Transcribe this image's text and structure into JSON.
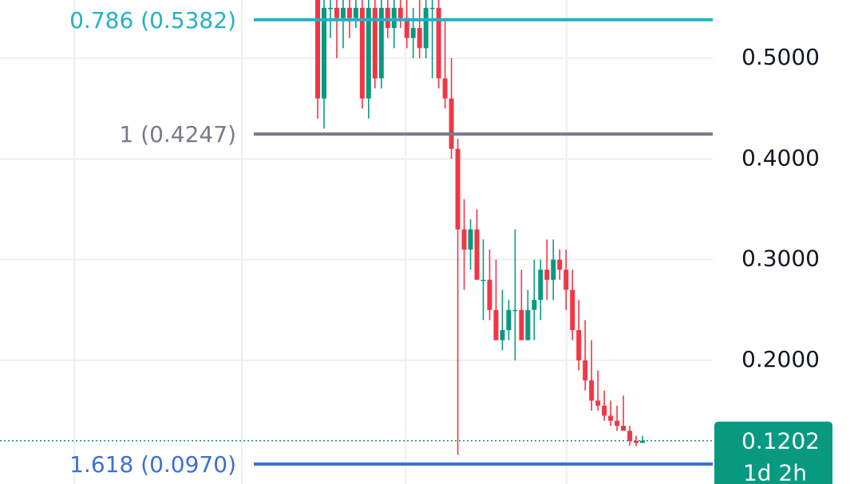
{
  "chart_data": {
    "type": "candlestick",
    "ylim": [
      0.0772,
      0.5578
    ],
    "yticks": [
      {
        "value": 0.2,
        "label": "0.2000"
      },
      {
        "value": 0.3,
        "label": "0.3000"
      },
      {
        "value": 0.4,
        "label": "0.4000"
      },
      {
        "value": 0.5,
        "label": "0.5000"
      }
    ],
    "grid": true,
    "up_color": "#089981",
    "down_color": "#f23645",
    "open": [
      0.56,
      0.46,
      0.55,
      0.55,
      0.54,
      0.55,
      0.54,
      0.55,
      0.46,
      0.55,
      0.48,
      0.55,
      0.53,
      0.55,
      0.54,
      0.52,
      0.53,
      0.51,
      0.55,
      0.55,
      0.48,
      0.46,
      0.41,
      0.33,
      0.31,
      0.33,
      0.28,
      0.28,
      0.25,
      0.22,
      0.23,
      0.25,
      0.25,
      0.22,
      0.25,
      0.26,
      0.29,
      0.28,
      0.3,
      0.29,
      0.27,
      0.23,
      0.2,
      0.18,
      0.16,
      0.155,
      0.145,
      0.14,
      0.135,
      0.13,
      0.12,
      0.118
    ],
    "high": [
      0.56,
      0.56,
      0.56,
      0.56,
      0.56,
      0.56,
      0.56,
      0.56,
      0.56,
      0.56,
      0.56,
      0.56,
      0.56,
      0.56,
      0.56,
      0.55,
      0.56,
      0.56,
      0.56,
      0.56,
      0.54,
      0.5,
      0.42,
      0.36,
      0.34,
      0.35,
      0.32,
      0.31,
      0.3,
      0.27,
      0.26,
      0.33,
      0.29,
      0.27,
      0.3,
      0.3,
      0.32,
      0.32,
      0.31,
      0.31,
      0.29,
      0.26,
      0.24,
      0.22,
      0.19,
      0.17,
      0.16,
      0.155,
      0.165,
      0.135,
      0.125,
      0.125
    ],
    "low": [
      0.44,
      0.43,
      0.52,
      0.5,
      0.51,
      0.52,
      0.53,
      0.45,
      0.44,
      0.47,
      0.47,
      0.52,
      0.51,
      0.53,
      0.51,
      0.5,
      0.5,
      0.5,
      0.48,
      0.47,
      0.45,
      0.4,
      0.106,
      0.27,
      0.29,
      0.28,
      0.24,
      0.24,
      0.22,
      0.21,
      0.22,
      0.2,
      0.22,
      0.22,
      0.22,
      0.24,
      0.26,
      0.26,
      0.28,
      0.25,
      0.22,
      0.19,
      0.17,
      0.15,
      0.15,
      0.14,
      0.135,
      0.13,
      0.13,
      0.115,
      0.115,
      0.118
    ],
    "close": [
      0.46,
      0.55,
      0.55,
      0.54,
      0.55,
      0.54,
      0.55,
      0.46,
      0.55,
      0.48,
      0.55,
      0.53,
      0.55,
      0.54,
      0.52,
      0.53,
      0.51,
      0.55,
      0.55,
      0.48,
      0.46,
      0.41,
      0.33,
      0.31,
      0.33,
      0.28,
      0.28,
      0.25,
      0.22,
      0.23,
      0.25,
      0.25,
      0.22,
      0.25,
      0.26,
      0.29,
      0.28,
      0.3,
      0.29,
      0.27,
      0.23,
      0.2,
      0.18,
      0.16,
      0.155,
      0.145,
      0.14,
      0.135,
      0.13,
      0.12,
      0.118,
      0.1202
    ],
    "fib_levels": [
      {
        "label": "0.786 (0.5382)",
        "value": 0.5382,
        "color": "#22b1c6"
      },
      {
        "label": "1 (0.4247)",
        "value": 0.4247,
        "color": "#787b86"
      },
      {
        "label": "1.618 (0.0970)",
        "value": 0.097,
        "color": "#3d6fd6"
      }
    ],
    "last_price": {
      "value": 0.1202,
      "countdown": "1d 2h",
      "color": "#089981"
    }
  }
}
